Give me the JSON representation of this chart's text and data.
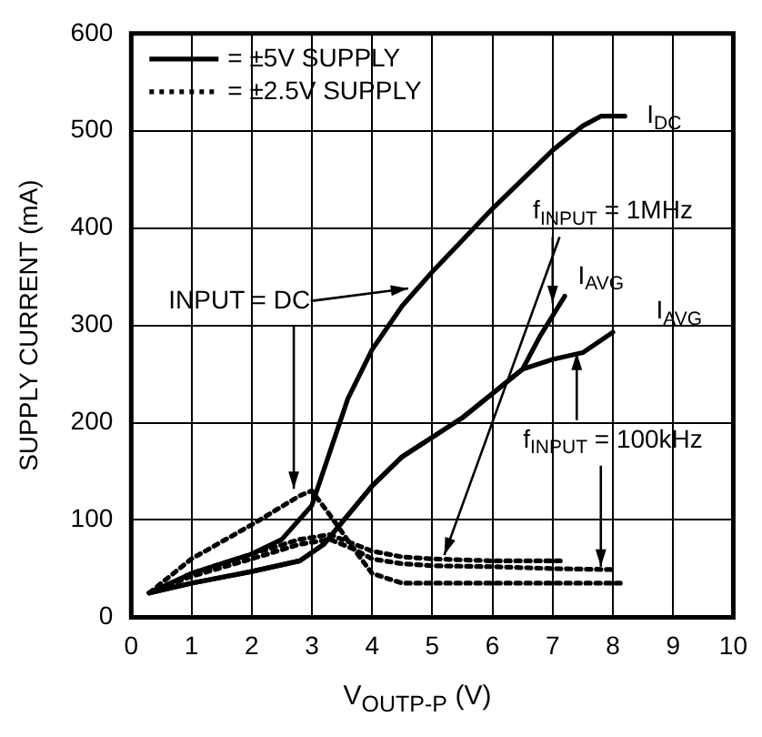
{
  "chart_data": {
    "type": "line",
    "xlabel": "V$_{OUTP-P}$ (V)",
    "ylabel": "SUPPLY CURRENT (mA)",
    "xlim": [
      0,
      10
    ],
    "xticks": [
      0,
      1,
      2,
      3,
      4,
      5,
      6,
      7,
      8,
      9,
      10
    ],
    "ylim": [
      0,
      600
    ],
    "yticks": [
      0,
      100,
      200,
      300,
      400,
      500,
      600
    ],
    "grid": true,
    "legend": "top left",
    "marker": "none",
    "series": [
      {
        "name": "= ±5V SUPPLY",
        "color": "#000000",
        "line_style": "solid",
        "x": [
          0.3,
          1,
          2,
          2.5,
          3,
          3.3,
          3.6,
          4,
          4.5,
          5,
          6,
          7,
          7.5,
          7.8,
          8.2
        ],
        "values": [
          25,
          45,
          65,
          80,
          115,
          170,
          225,
          275,
          320,
          355,
          420,
          480,
          505,
          515,
          515
        ]
      },
      {
        "color": "#000000",
        "line_style": "solid",
        "x": [
          0.3,
          1,
          2,
          2.8,
          3.2,
          3.6,
          4,
          4.5,
          5,
          5.5,
          6,
          6.5,
          6.8,
          7.2
        ],
        "values": [
          25,
          35,
          47,
          58,
          75,
          105,
          135,
          165,
          185,
          205,
          230,
          255,
          290,
          330
        ]
      },
      {
        "color": "#000000",
        "line_style": "solid",
        "x": [
          0.3,
          1,
          2,
          2.8,
          3.2,
          3.6,
          4,
          4.5,
          5,
          5.5,
          6,
          6.5,
          7,
          7.5,
          8
        ],
        "values": [
          25,
          35,
          47,
          58,
          75,
          105,
          135,
          165,
          185,
          205,
          230,
          255,
          265,
          272,
          293
        ]
      },
      {
        "name": "= ±2.5V SUPPLY",
        "color": "#000000",
        "line_style": "dotted",
        "x": [
          0.3,
          1,
          2,
          2.8,
          3,
          3.3,
          3.7,
          4,
          4.5,
          5,
          6,
          7,
          8.2
        ],
        "values": [
          25,
          60,
          95,
          125,
          130,
          105,
          70,
          45,
          35,
          35,
          35,
          35,
          35
        ]
      },
      {
        "color": "#000000",
        "line_style": "dotted",
        "x": [
          0.3,
          1,
          2,
          2.8,
          3.3,
          4,
          4.5,
          5,
          6,
          7.2
        ],
        "values": [
          25,
          45,
          65,
          80,
          85,
          68,
          62,
          60,
          58,
          58
        ]
      },
      {
        "color": "#000000",
        "line_style": "dotted",
        "x": [
          0.3,
          1,
          2,
          2.8,
          3.3,
          3.7,
          4,
          4.5,
          5,
          6,
          7,
          8
        ],
        "values": [
          25,
          42,
          60,
          75,
          80,
          70,
          60,
          55,
          53,
          52,
          50,
          49
        ]
      }
    ],
    "annotations": [
      "I$_{DC}$",
      {
        "text": "INPUT = DC",
        "x": 4.6,
        "y": 338
      },
      {
        "text": "f$_{INPUT}$ = 1MHz",
        "x": 7.0,
        "y": 323
      },
      "I$_{AVG}$",
      "I$_{AVG}$",
      {
        "text": "f$_{INPUT}$ = 100kHz",
        "x": 7.4,
        "y": 272
      }
    ]
  }
}
